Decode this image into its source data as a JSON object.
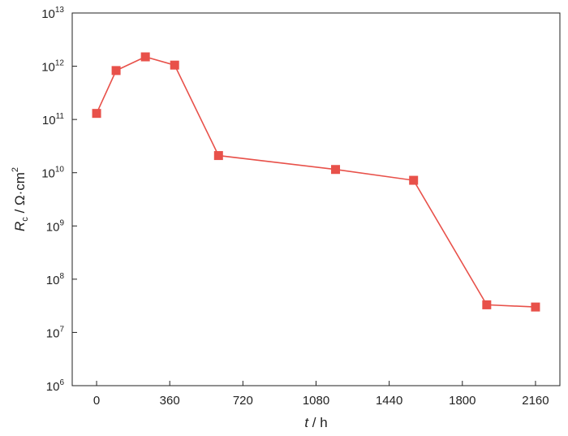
{
  "chart_data": {
    "type": "line",
    "x_label_symbol": "t",
    "x_label_unit": " / h",
    "y_label_symbol": "R",
    "y_label_subscript": "c",
    "y_label_unit": " / Ω·cm",
    "y_label_unit_sup": "2",
    "x_ticks": [
      0,
      360,
      720,
      1080,
      1440,
      1800,
      2160
    ],
    "xlim": [
      -120,
      2280
    ],
    "y_scale": "log",
    "ylim": [
      1000000.0,
      10000000000000.0
    ],
    "y_tick_base": "10",
    "y_tick_exponents": [
      "6",
      "7",
      "8",
      "9",
      "10",
      "11",
      "12",
      "13"
    ],
    "grid": false,
    "legend": "none",
    "series": [
      {
        "color": "#e8514a",
        "marker": "square",
        "x": [
          0,
          96,
          240,
          384,
          600,
          1176,
          1560,
          1920,
          2160
        ],
        "y": [
          130000000000.0,
          830000000000.0,
          1500000000000.0,
          1050000000000.0,
          21000000000.0,
          11500000000.0,
          7200000000.0,
          33000000.0,
          30000000.0
        ]
      }
    ]
  }
}
